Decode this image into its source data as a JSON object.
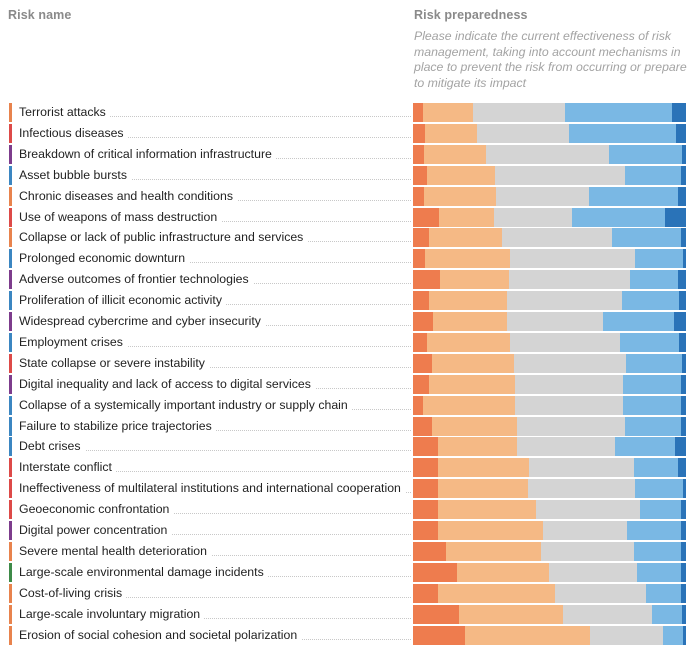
{
  "headers": {
    "risk_name": "Risk name",
    "risk_preparedness": "Risk preparedness",
    "instruction": "Please indicate the current effectiveness of risk management, taking into account mechanisms in place to prevent the risk from occurring or prepare to mitigate its impact"
  },
  "colors": {
    "segments": [
      "#ee7c4e",
      "#f5b985",
      "#d4d4d4",
      "#7ab8e4",
      "#2a73b8"
    ],
    "categories": {
      "societal": "#e8834d",
      "economic": "#3b86c1",
      "technological": "#7d3c8c",
      "geopolitical": "#dd4a48",
      "environmental": "#3e8a48"
    }
  },
  "chart_data": {
    "type": "bar",
    "stacked": true,
    "orientation": "horizontal",
    "normalized": true,
    "xlim": [
      0,
      100
    ],
    "categories": [
      "Terrorist attacks",
      "Infectious diseases",
      "Breakdown of critical information infrastructure",
      "Asset bubble bursts",
      "Chronic diseases and health conditions",
      "Use of weapons of mass destruction",
      "Collapse or lack of public infrastructure and services",
      "Prolonged economic downturn",
      "Adverse outcomes of frontier technologies",
      "Proliferation of illicit economic activity",
      "Widespread cybercrime and cyber insecurity",
      "Employment crises",
      "State collapse or severe instability",
      "Digital inequality and lack of access to digital services",
      "Collapse of a systemically important industry or supply chain",
      "Failure to stabilize price trajectories",
      "Debt crises",
      "Interstate conflict",
      "Ineffectiveness of multilateral institutions and international cooperation",
      "Geoeconomic confrontation",
      "Digital power concentration",
      "Severe mental health deterioration",
      "Large-scale environmental damage incidents",
      "Cost-of-living crisis",
      "Large-scale involuntary migration",
      "Erosion of social cohesion and societal polarization"
    ],
    "risk_category": [
      "societal",
      "geopolitical",
      "technological",
      "economic",
      "societal",
      "geopolitical",
      "societal",
      "economic",
      "technological",
      "economic",
      "technological",
      "economic",
      "geopolitical",
      "technological",
      "economic",
      "economic",
      "economic",
      "geopolitical",
      "geopolitical",
      "geopolitical",
      "technological",
      "societal",
      "environmental",
      "societal",
      "societal",
      "societal"
    ],
    "series": [
      {
        "values": [
          3.5,
          4.5,
          4.0,
          5.0,
          4.0,
          9.5,
          6.0,
          4.5,
          10.0,
          6.0,
          7.5,
          5.0,
          7.0,
          6.0,
          3.5,
          7.0,
          9.0,
          9.0,
          9.0,
          9.0,
          9.0,
          12.0,
          16.0,
          9.0,
          17.0,
          19.0
        ]
      },
      {
        "values": [
          18.0,
          19.0,
          22.5,
          25.0,
          26.5,
          20.0,
          26.5,
          31.0,
          25.0,
          28.5,
          27.0,
          30.5,
          30.0,
          31.5,
          34.0,
          31.0,
          29.0,
          33.5,
          33.0,
          36.0,
          38.5,
          35.0,
          34.0,
          43.0,
          38.0,
          46.0
        ]
      },
      {
        "values": [
          33.5,
          33.5,
          45.0,
          47.5,
          34.0,
          28.5,
          40.5,
          46.0,
          44.5,
          42.0,
          35.0,
          40.5,
          41.0,
          39.5,
          39.5,
          39.5,
          36.0,
          38.5,
          39.5,
          38.0,
          31.0,
          34.0,
          32.0,
          33.5,
          32.5,
          26.5
        ]
      },
      {
        "values": [
          38.5,
          39.5,
          26.5,
          20.5,
          32.5,
          34.0,
          25.0,
          17.5,
          17.5,
          21.0,
          26.0,
          21.5,
          20.5,
          21.0,
          21.0,
          20.5,
          22.0,
          16.0,
          17.5,
          15.0,
          19.5,
          17.0,
          16.0,
          12.5,
          11.0,
          7.5
        ]
      },
      {
        "values": [
          5.0,
          3.5,
          1.5,
          2.0,
          3.0,
          7.5,
          2.0,
          1.0,
          3.0,
          2.5,
          4.5,
          2.5,
          1.5,
          2.0,
          2.0,
          2.0,
          4.0,
          3.0,
          1.0,
          2.0,
          2.0,
          2.0,
          2.0,
          2.0,
          1.5,
          1.0
        ]
      }
    ]
  }
}
